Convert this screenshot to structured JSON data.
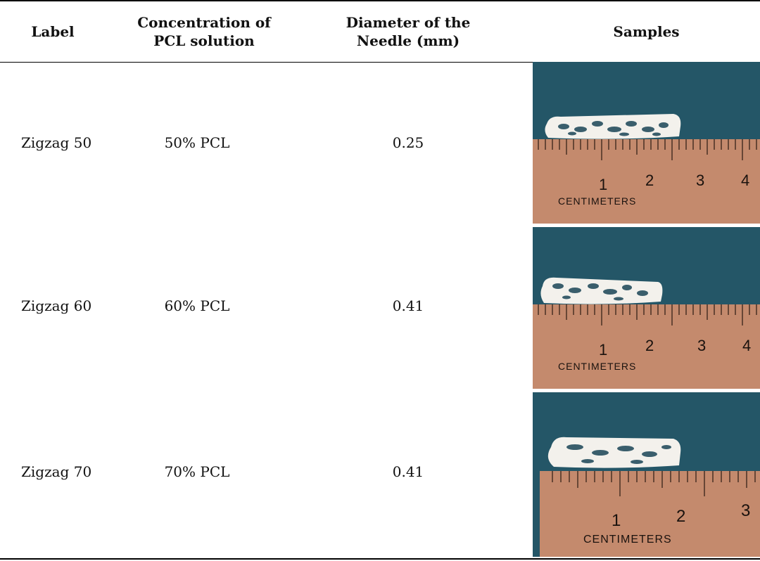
{
  "table": {
    "headers": {
      "label": "Label",
      "concentration": [
        "Concentration of",
        "PCL solution"
      ],
      "diameter": [
        "Diameter of the",
        "Needle (mm)"
      ],
      "samples": "Samples"
    },
    "rows": [
      {
        "label": "Zigzag 50",
        "concentration": "50% PCL",
        "diameter": "0.25",
        "ruler": {
          "numbers": [
            "1",
            "2",
            "3",
            "4"
          ],
          "caption": "CENTIMETERS"
        }
      },
      {
        "label": "Zigzag 60",
        "concentration": "60% PCL",
        "diameter": "0.41",
        "ruler": {
          "numbers": [
            "1",
            "2",
            "3",
            "4"
          ],
          "caption": "CENTIMETERS"
        }
      },
      {
        "label": "Zigzag 70",
        "concentration": "70% PCL",
        "diameter": "0.41",
        "ruler": {
          "numbers": [
            "1",
            "2",
            "3"
          ],
          "caption": "CENTIMETERS"
        }
      }
    ]
  },
  "colors": {
    "background_blue": "#275b6e",
    "ruler_copper": "#c98f72",
    "scaffold_white": "#f3f1ec"
  }
}
